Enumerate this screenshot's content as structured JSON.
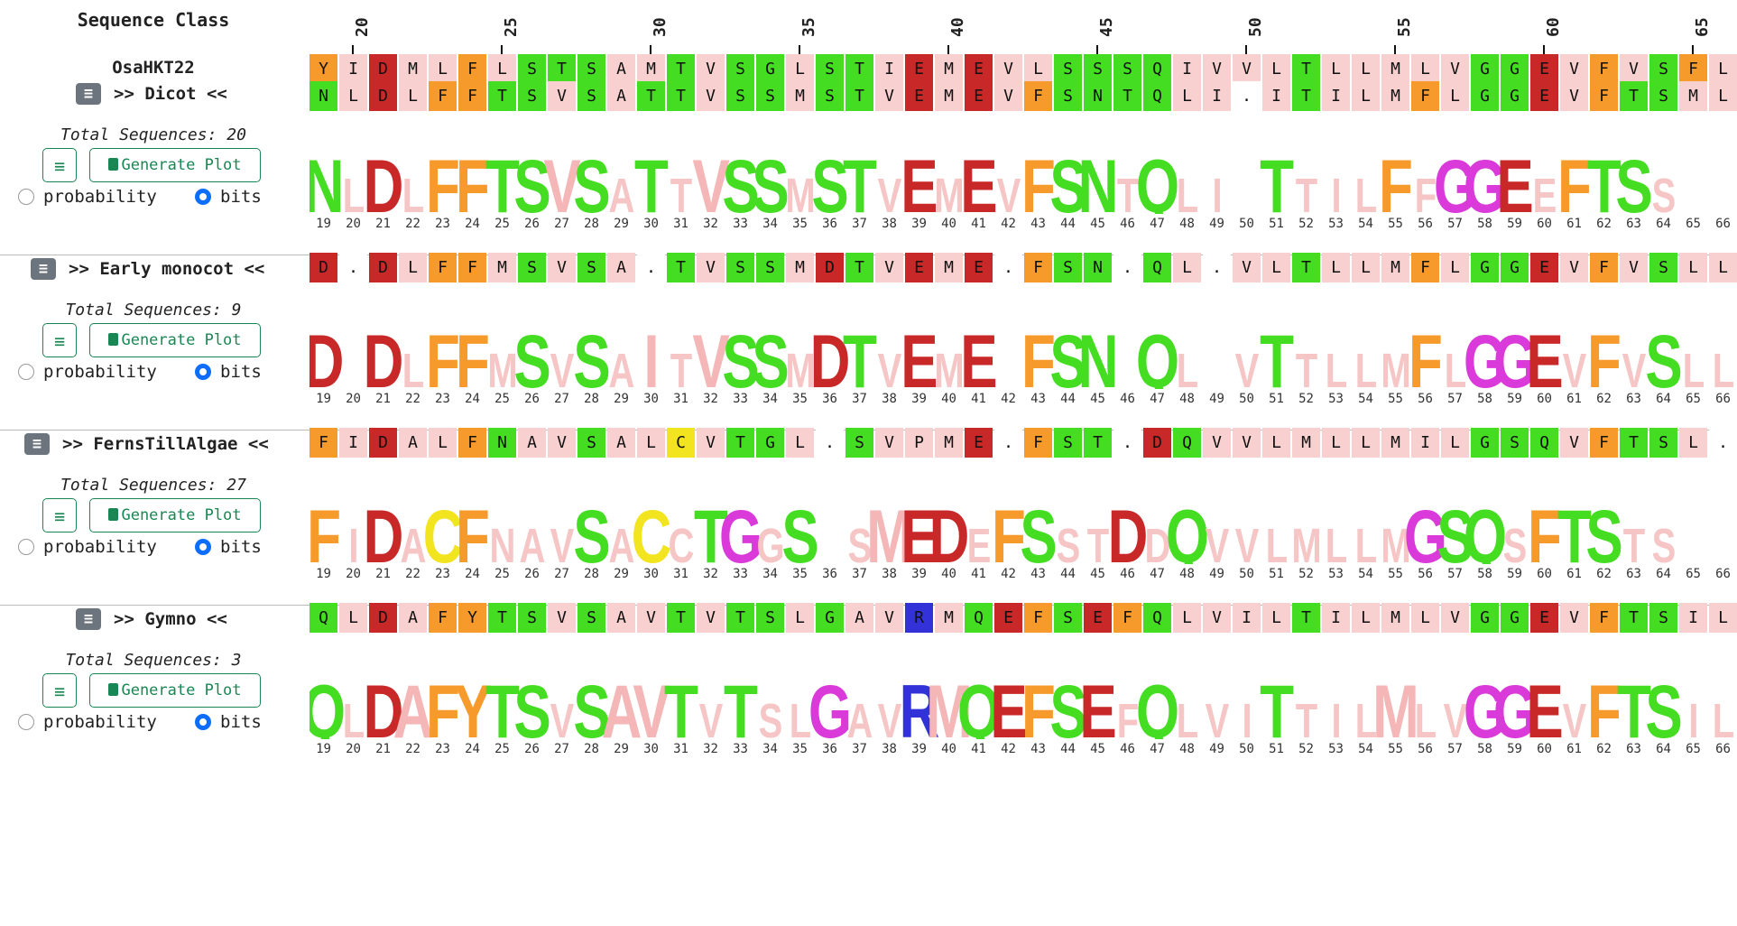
{
  "header": {
    "title": "Sequence Class"
  },
  "ruler": {
    "labels": [
      "20",
      "25",
      "30",
      "35",
      "40",
      "45",
      "50",
      "55",
      "60",
      "65"
    ],
    "positions": [
      20,
      25,
      30,
      35,
      40,
      45,
      50,
      55,
      60,
      65
    ]
  },
  "positions": [
    19,
    20,
    21,
    22,
    23,
    24,
    25,
    26,
    27,
    28,
    29,
    30,
    31,
    32,
    33,
    34,
    35,
    36,
    37,
    38,
    39,
    40,
    41,
    42,
    43,
    44,
    45,
    46,
    47,
    48,
    49,
    50,
    51,
    52,
    53,
    54,
    55,
    56,
    57,
    58,
    59,
    60,
    61,
    62,
    63,
    64,
    65,
    66
  ],
  "colors": {
    "green": "#44dd22",
    "orange": "#f79a2c",
    "red": "#c82828",
    "magenta": "#d93ad9",
    "yellow": "#f2e41f",
    "blue": "#3232d8",
    "pink": "#f8d0d0",
    "none": "#ffffff"
  },
  "reference": {
    "name": "OsaHKT22",
    "seq": "YIDMLFLSTSAMTVSGLSTIEMEVLSSSQIVVLTLLMLVGGEVFVSFL"
  },
  "controls": {
    "total_prefix": "Total Sequences: ",
    "generate_label": "Generate Plot",
    "menu_icon": "menu-icon",
    "doc_icon": "file-chart-icon",
    "prob_label": "probability",
    "bits_label": "bits"
  },
  "groups": [
    {
      "label": ">> Dicot <<",
      "total": "20",
      "seq": "NLDLFFTSVSATTVSSMSTVEMEVFSNTQLI.ITILMFLGGEVFTSML",
      "logo": "N.D.FFTSVS.T.VSS.ST.E.E.FSN.Q...T...F.GGE.FTS."
    },
    {
      "label": ">> Early monocot <<",
      "total": "9",
      "seq": "D.DLFFMSVSA.TVSSMDTVEME.FSN.QL.VLTLLMFLGGEVFVSLL",
      "logo": "D.D.FF.S.S.I.VSS.DT.E.E.FSN.Q...T....F.GGE.F.S.."
    },
    {
      "label": ">> FernsTillAlgae <<",
      "total": "27",
      "seq": "FIDALFNAVSALCVTGL.SVPME.FST.DQVVLMLLMILGSQVFTSL.",
      "logo": "F.D.CF...S.C.TG.S..MED.FS..D.Q.......GSQ.FTS.."
    },
    {
      "label": ">> Gymno <<",
      "total": "3",
      "seq": "QLDAFYTSVSAVTVTSLGAVRMQEFSEFQLVILTILMLVGGEVFTSIL",
      "logo": "Q.DAFYTS.SAVT.T..G..RMQEFSE.Q...T...M..GGE.FTS.."
    }
  ]
}
